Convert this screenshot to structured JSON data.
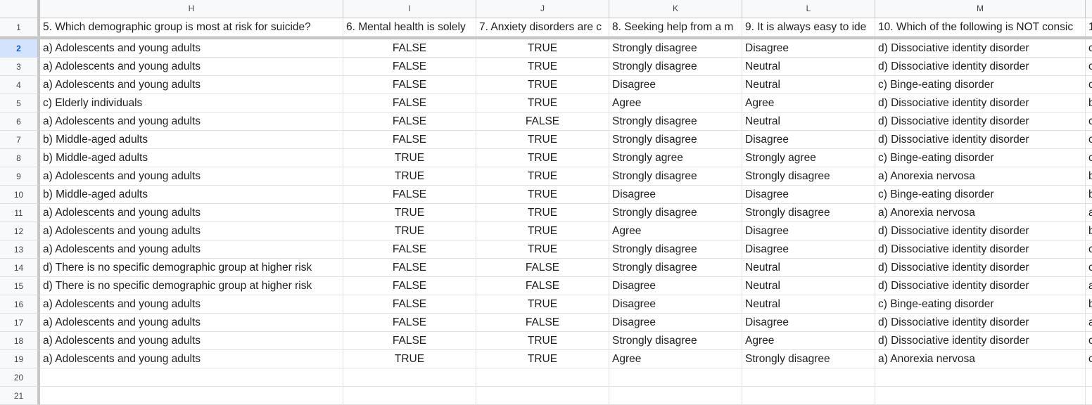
{
  "columns": [
    "H",
    "I",
    "J",
    "K",
    "L",
    "M",
    ""
  ],
  "header_row": {
    "number": "1",
    "cells": [
      "5. Which demographic group is most at risk for suicide?",
      "6. Mental health is solely",
      "7. Anxiety disorders are c",
      "8. Seeking help from a m",
      "9. It is always easy to ide",
      "10. Which of the following is NOT consic",
      "1"
    ]
  },
  "rows": [
    {
      "n": "2",
      "cells": [
        "a) Adolescents and young adults",
        "FALSE",
        "TRUE",
        "Strongly disagree",
        "Disagree",
        "d) Dissociative identity disorder",
        "c"
      ]
    },
    {
      "n": "3",
      "cells": [
        "a) Adolescents and young adults",
        "FALSE",
        "TRUE",
        "Strongly disagree",
        "Neutral",
        "d) Dissociative identity disorder",
        "c"
      ]
    },
    {
      "n": "4",
      "cells": [
        "a) Adolescents and young adults",
        "FALSE",
        "TRUE",
        "Disagree",
        "Neutral",
        "c) Binge-eating disorder",
        "c"
      ]
    },
    {
      "n": "5",
      "cells": [
        "c) Elderly individuals",
        "FALSE",
        "TRUE",
        "Agree",
        "Agree",
        "d) Dissociative identity disorder",
        "b"
      ]
    },
    {
      "n": "6",
      "cells": [
        "a) Adolescents and young adults",
        "FALSE",
        "FALSE",
        "Strongly disagree",
        "Neutral",
        "d) Dissociative identity disorder",
        "c"
      ]
    },
    {
      "n": "7",
      "cells": [
        "b) Middle-aged adults",
        "FALSE",
        "TRUE",
        "Strongly disagree",
        "Disagree",
        "d) Dissociative identity disorder",
        "c"
      ]
    },
    {
      "n": "8",
      "cells": [
        "b) Middle-aged adults",
        "TRUE",
        "TRUE",
        "Strongly agree",
        "Strongly agree",
        "c) Binge-eating disorder",
        "c"
      ]
    },
    {
      "n": "9",
      "cells": [
        "a) Adolescents and young adults",
        "TRUE",
        "TRUE",
        "Strongly disagree",
        "Strongly disagree",
        "a) Anorexia nervosa",
        "b"
      ]
    },
    {
      "n": "10",
      "cells": [
        "b) Middle-aged adults",
        "FALSE",
        "TRUE",
        "Disagree",
        "Disagree",
        "c) Binge-eating disorder",
        "b"
      ]
    },
    {
      "n": "11",
      "cells": [
        "a) Adolescents and young adults",
        "TRUE",
        "TRUE",
        "Strongly disagree",
        "Strongly disagree",
        "a) Anorexia nervosa",
        "a"
      ]
    },
    {
      "n": "12",
      "cells": [
        "a) Adolescents and young adults",
        "TRUE",
        "TRUE",
        "Agree",
        "Disagree",
        "d) Dissociative identity disorder",
        "b"
      ]
    },
    {
      "n": "13",
      "cells": [
        "a) Adolescents and young adults",
        "FALSE",
        "TRUE",
        "Strongly disagree",
        "Disagree",
        "d) Dissociative identity disorder",
        "c"
      ]
    },
    {
      "n": "14",
      "cells": [
        "d) There is no specific demographic group at higher risk",
        "FALSE",
        "FALSE",
        "Strongly disagree",
        "Neutral",
        "d) Dissociative identity disorder",
        "c"
      ]
    },
    {
      "n": "15",
      "cells": [
        "d) There is no specific demographic group at higher risk",
        "FALSE",
        "FALSE",
        "Disagree",
        "Neutral",
        "d) Dissociative identity disorder",
        "a"
      ]
    },
    {
      "n": "16",
      "cells": [
        "a) Adolescents and young adults",
        "FALSE",
        "TRUE",
        "Disagree",
        "Neutral",
        "c) Binge-eating disorder",
        "b"
      ]
    },
    {
      "n": "17",
      "cells": [
        "a) Adolescents and young adults",
        "FALSE",
        "FALSE",
        "Disagree",
        "Disagree",
        "d) Dissociative identity disorder",
        "a"
      ]
    },
    {
      "n": "18",
      "cells": [
        "a) Adolescents and young adults",
        "FALSE",
        "TRUE",
        "Strongly disagree",
        "Agree",
        "d) Dissociative identity disorder",
        "c"
      ]
    },
    {
      "n": "19",
      "cells": [
        "a) Adolescents and young adults",
        "TRUE",
        "TRUE",
        "Agree",
        "Strongly disagree",
        "a) Anorexia nervosa",
        "c"
      ]
    },
    {
      "n": "20",
      "cells": [
        "",
        "",
        "",
        "",
        "",
        "",
        ""
      ]
    },
    {
      "n": "21",
      "cells": [
        "",
        "",
        "",
        "",
        "",
        "",
        ""
      ]
    }
  ],
  "selected_row": "2"
}
